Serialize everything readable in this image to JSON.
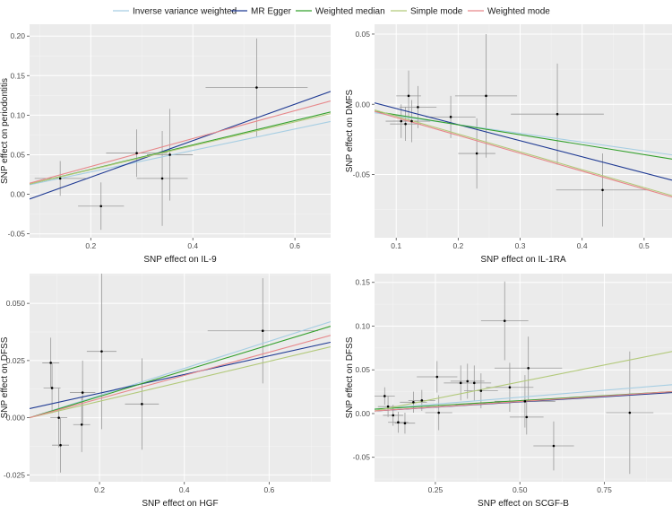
{
  "legend": {
    "items": [
      {
        "name": "Inverse variance weighted",
        "color": "#a6cee3"
      },
      {
        "name": "MR Egger",
        "color": "#1f3a93"
      },
      {
        "name": "Weighted median",
        "color": "#33a02c"
      },
      {
        "name": "Simple mode",
        "color": "#b2c97a"
      },
      {
        "name": "Weighted mode",
        "color": "#e7888b"
      }
    ]
  },
  "chart_data": [
    {
      "type": "scatter",
      "xlabel": "SNP effect on IL-9",
      "ylabel": "SNP effect on periodontitis",
      "xlim": [
        0.08,
        0.67
      ],
      "ylim": [
        -0.055,
        0.215
      ],
      "xticks": [
        0.2,
        0.4,
        0.6
      ],
      "xtick_labels": [
        "0.2",
        "0.4",
        "0.6"
      ],
      "yticks": [
        -0.05,
        0.0,
        0.05,
        0.1,
        0.15,
        0.2
      ],
      "ytick_labels": [
        "-0.05",
        "0.00",
        "0.05",
        "0.10",
        "0.15",
        "0.20"
      ],
      "points": [
        {
          "x": 0.14,
          "y": 0.02,
          "xerr": 0.05,
          "yerr": 0.022
        },
        {
          "x": 0.22,
          "y": -0.015,
          "xerr": 0.045,
          "yerr": 0.03
        },
        {
          "x": 0.29,
          "y": 0.052,
          "xerr": 0.06,
          "yerr": 0.03
        },
        {
          "x": 0.34,
          "y": 0.02,
          "xerr": 0.05,
          "yerr": 0.06
        },
        {
          "x": 0.355,
          "y": 0.05,
          "xerr": 0.045,
          "yerr": 0.058
        },
        {
          "x": 0.525,
          "y": 0.135,
          "xerr": 0.1,
          "yerr": 0.062
        }
      ],
      "lines": [
        {
          "method": "Inverse variance weighted",
          "x": [
            0.08,
            0.67
          ],
          "y": [
            0.012,
            0.092
          ]
        },
        {
          "method": "MR Egger",
          "x": [
            0.08,
            0.67
          ],
          "y": [
            -0.006,
            0.13
          ]
        },
        {
          "method": "Weighted median",
          "x": [
            0.08,
            0.67
          ],
          "y": [
            0.013,
            0.104
          ]
        },
        {
          "method": "Simple mode",
          "x": [
            0.08,
            0.67
          ],
          "y": [
            0.013,
            0.102
          ]
        },
        {
          "method": "Weighted mode",
          "x": [
            0.08,
            0.67
          ],
          "y": [
            0.014,
            0.118
          ]
        }
      ]
    },
    {
      "type": "scatter",
      "xlabel": "SNP effect on IL-1RA",
      "ylabel": "SNP effect on DMFS",
      "xlim": [
        0.065,
        0.545
      ],
      "ylim": [
        -0.095,
        0.057
      ],
      "xticks": [
        0.1,
        0.2,
        0.3,
        0.4,
        0.5
      ],
      "xtick_labels": [
        "0.1",
        "0.2",
        "0.3",
        "0.4",
        "0.5"
      ],
      "yticks": [
        -0.05,
        0.0,
        0.05
      ],
      "ytick_labels": [
        "-0.05",
        "0.00",
        "0.05"
      ],
      "points": [
        {
          "x": 0.108,
          "y": -0.012,
          "xerr": 0.025,
          "yerr": 0.012
        },
        {
          "x": 0.115,
          "y": -0.014,
          "xerr": 0.025,
          "yerr": 0.012
        },
        {
          "x": 0.12,
          "y": 0.006,
          "xerr": 0.02,
          "yerr": 0.018
        },
        {
          "x": 0.125,
          "y": -0.012,
          "xerr": 0.03,
          "yerr": 0.015
        },
        {
          "x": 0.135,
          "y": -0.002,
          "xerr": 0.03,
          "yerr": 0.015
        },
        {
          "x": 0.188,
          "y": -0.009,
          "xerr": 0.04,
          "yerr": 0.015
        },
        {
          "x": 0.23,
          "y": -0.035,
          "xerr": 0.03,
          "yerr": 0.025
        },
        {
          "x": 0.245,
          "y": 0.006,
          "xerr": 0.05,
          "yerr": 0.044
        },
        {
          "x": 0.36,
          "y": -0.007,
          "xerr": 0.075,
          "yerr": 0.036
        },
        {
          "x": 0.433,
          "y": -0.061,
          "xerr": 0.075,
          "yerr": 0.026
        }
      ],
      "lines": [
        {
          "method": "Inverse variance weighted",
          "x": [
            0.065,
            0.545
          ],
          "y": [
            -0.006,
            -0.036
          ]
        },
        {
          "method": "MR Egger",
          "x": [
            0.065,
            0.545
          ],
          "y": [
            0.001,
            -0.054
          ]
        },
        {
          "method": "Weighted median",
          "x": [
            0.065,
            0.545
          ],
          "y": [
            -0.005,
            -0.039
          ]
        },
        {
          "method": "Simple mode",
          "x": [
            0.065,
            0.545
          ],
          "y": [
            -0.004,
            -0.065
          ]
        },
        {
          "method": "Weighted mode",
          "x": [
            0.065,
            0.545
          ],
          "y": [
            -0.005,
            -0.066
          ]
        }
      ]
    },
    {
      "type": "scatter",
      "xlabel": "SNP effect on HGF",
      "ylabel": "SNP effect on DFSS",
      "xlim": [
        0.035,
        0.745
      ],
      "ylim": [
        -0.028,
        0.063
      ],
      "xticks": [
        0.2,
        0.4,
        0.6
      ],
      "xtick_labels": [
        "0.2",
        "0.4",
        "0.6"
      ],
      "yticks": [
        -0.025,
        0.0,
        0.025,
        0.05
      ],
      "ytick_labels": [
        "-0.025",
        "0.000",
        "0.025",
        "0.050"
      ],
      "points": [
        {
          "x": 0.085,
          "y": 0.024,
          "xerr": 0.02,
          "yerr": 0.011
        },
        {
          "x": 0.088,
          "y": 0.013,
          "xerr": 0.02,
          "yerr": 0.011
        },
        {
          "x": 0.104,
          "y": 0.0,
          "xerr": 0.02,
          "yerr": 0.013
        },
        {
          "x": 0.108,
          "y": -0.012,
          "xerr": 0.02,
          "yerr": 0.012
        },
        {
          "x": 0.158,
          "y": -0.003,
          "xerr": 0.02,
          "yerr": 0.012
        },
        {
          "x": 0.16,
          "y": 0.011,
          "xerr": 0.03,
          "yerr": 0.014
        },
        {
          "x": 0.205,
          "y": 0.029,
          "xerr": 0.035,
          "yerr": 0.034
        },
        {
          "x": 0.3,
          "y": 0.006,
          "xerr": 0.04,
          "yerr": 0.02
        },
        {
          "x": 0.585,
          "y": 0.038,
          "xerr": 0.13,
          "yerr": 0.023
        }
      ],
      "lines": [
        {
          "method": "Inverse variance weighted",
          "x": [
            0.035,
            0.745
          ],
          "y": [
            0.0,
            0.042
          ]
        },
        {
          "method": "MR Egger",
          "x": [
            0.035,
            0.745
          ],
          "y": [
            0.004,
            0.033
          ]
        },
        {
          "method": "Weighted median",
          "x": [
            0.035,
            0.745
          ],
          "y": [
            0.0,
            0.04
          ]
        },
        {
          "method": "Simple mode",
          "x": [
            0.035,
            0.745
          ],
          "y": [
            0.0,
            0.031
          ]
        },
        {
          "method": "Weighted mode",
          "x": [
            0.035,
            0.745
          ],
          "y": [
            0.0,
            0.036
          ]
        }
      ]
    },
    {
      "type": "scatter",
      "xlabel": "SNP effect on SCGF-B",
      "ylabel": "SNP effect on DFSS",
      "xlim": [
        0.07,
        0.95
      ],
      "ylim": [
        -0.078,
        0.16
      ],
      "xticks": [
        0.25,
        0.5,
        0.75
      ],
      "xtick_labels": [
        "0.25",
        "0.50",
        "0.75"
      ],
      "yticks": [
        -0.05,
        0.0,
        0.05,
        0.1,
        0.15
      ],
      "ytick_labels": [
        "-0.05",
        "0.00",
        "0.05",
        "0.10",
        "0.15"
      ],
      "points": [
        {
          "x": 0.1,
          "y": 0.02,
          "xerr": 0.03,
          "yerr": 0.01
        },
        {
          "x": 0.11,
          "y": 0.008,
          "xerr": 0.03,
          "yerr": 0.012
        },
        {
          "x": 0.125,
          "y": -0.002,
          "xerr": 0.03,
          "yerr": 0.012
        },
        {
          "x": 0.14,
          "y": -0.01,
          "xerr": 0.03,
          "yerr": 0.012
        },
        {
          "x": 0.16,
          "y": -0.011,
          "xerr": 0.03,
          "yerr": 0.012
        },
        {
          "x": 0.185,
          "y": 0.013,
          "xerr": 0.04,
          "yerr": 0.012
        },
        {
          "x": 0.21,
          "y": 0.015,
          "xerr": 0.04,
          "yerr": 0.012
        },
        {
          "x": 0.255,
          "y": 0.042,
          "xerr": 0.06,
          "yerr": 0.018
        },
        {
          "x": 0.26,
          "y": 0.001,
          "xerr": 0.04,
          "yerr": 0.02
        },
        {
          "x": 0.325,
          "y": 0.035,
          "xerr": 0.05,
          "yerr": 0.02
        },
        {
          "x": 0.345,
          "y": 0.037,
          "xerr": 0.05,
          "yerr": 0.02
        },
        {
          "x": 0.365,
          "y": 0.035,
          "xerr": 0.05,
          "yerr": 0.02
        },
        {
          "x": 0.385,
          "y": 0.026,
          "xerr": 0.05,
          "yerr": 0.02
        },
        {
          "x": 0.455,
          "y": 0.106,
          "xerr": 0.07,
          "yerr": 0.045
        },
        {
          "x": 0.47,
          "y": 0.03,
          "xerr": 0.07,
          "yerr": 0.028
        },
        {
          "x": 0.515,
          "y": 0.014,
          "xerr": 0.09,
          "yerr": 0.03
        },
        {
          "x": 0.52,
          "y": -0.004,
          "xerr": 0.05,
          "yerr": 0.02
        },
        {
          "x": 0.525,
          "y": 0.052,
          "xerr": 0.1,
          "yerr": 0.036
        },
        {
          "x": 0.6,
          "y": -0.037,
          "xerr": 0.06,
          "yerr": 0.028
        },
        {
          "x": 0.825,
          "y": 0.001,
          "xerr": 0.07,
          "yerr": 0.07
        }
      ],
      "lines": [
        {
          "method": "Inverse variance weighted",
          "x": [
            0.07,
            0.95
          ],
          "y": [
            0.005,
            0.033
          ]
        },
        {
          "method": "MR Egger",
          "x": [
            0.07,
            0.95
          ],
          "y": [
            0.003,
            0.024
          ]
        },
        {
          "method": "Weighted median",
          "x": [
            0.07,
            0.95
          ],
          "y": [
            0.005,
            0.025
          ]
        },
        {
          "method": "Simple mode",
          "x": [
            0.07,
            0.95
          ],
          "y": [
            0.003,
            0.071
          ]
        },
        {
          "method": "Weighted mode",
          "x": [
            0.07,
            0.95
          ],
          "y": [
            0.003,
            0.025
          ]
        }
      ]
    }
  ]
}
